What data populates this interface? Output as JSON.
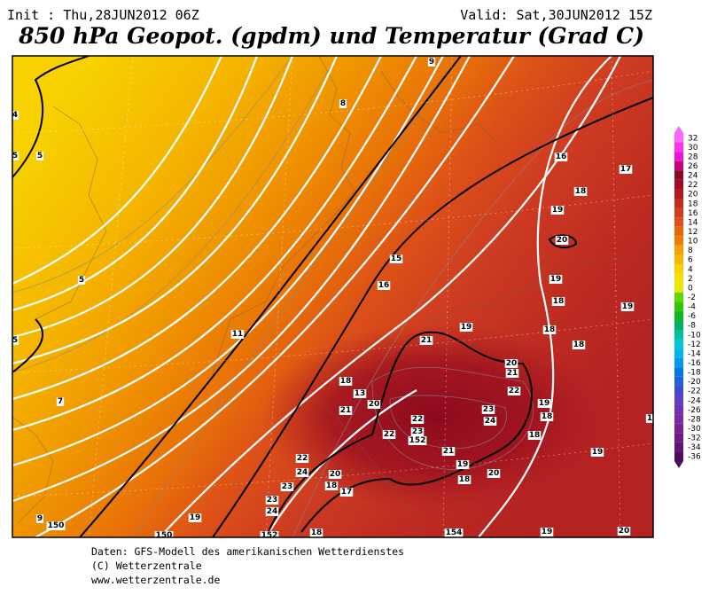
{
  "header": {
    "init": "Init : Thu,28JUN2012 06Z",
    "valid": "Valid: Sat,30JUN2012 15Z",
    "title": "850 hPa Geopot. (gpdm) und Temperatur (Grad C)"
  },
  "map": {
    "labels": [
      "9",
      "8",
      "4",
      "5",
      "5",
      "16",
      "17",
      "18",
      "19",
      "20",
      "15",
      "5",
      "16",
      "19",
      "18",
      "19",
      "5",
      "11",
      "19",
      "18",
      "21",
      "18",
      "20",
      "21",
      "18",
      "13",
      "22",
      "7",
      "20",
      "19",
      "21",
      "23",
      "18",
      "22",
      "24",
      "22",
      "23",
      "152",
      "18",
      "21",
      "22",
      "24",
      "19",
      "20",
      "18",
      "20",
      "18",
      "23",
      "17",
      "23",
      "24",
      "19",
      "9",
      "150",
      "150",
      "152",
      "18",
      "154",
      "19",
      "20",
      "19",
      "1"
    ]
  },
  "legend": {
    "labels": [
      32,
      30,
      28,
      26,
      24,
      22,
      20,
      18,
      16,
      14,
      12,
      10,
      8,
      6,
      4,
      2,
      0,
      -2,
      -4,
      -6,
      -8,
      -10,
      -12,
      -14,
      -16,
      -18,
      -20,
      -22,
      -24,
      -26,
      -28,
      -30,
      -32,
      -34,
      -36
    ]
  },
  "footer": {
    "lines": [
      "Daten: GFS-Modell des amerikanischen Wetterdienstes",
      "(C) Wetterzentrale",
      "www.wetterzentrale.de"
    ]
  }
}
